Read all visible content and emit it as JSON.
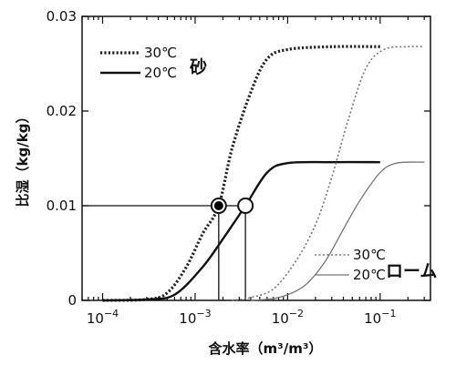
{
  "chart_data": {
    "type": "line",
    "xlabel": "含水率（m³/m³）",
    "ylabel": "比湿（kg/kg）",
    "xscale": "log",
    "xlim": [
      6e-05,
      0.35
    ],
    "ylim": [
      0,
      0.03
    ],
    "x_ticks": [
      {
        "value": 0.0001,
        "base": "10",
        "exp": "−4"
      },
      {
        "value": 0.001,
        "base": "10",
        "exp": "−3"
      },
      {
        "value": 0.01,
        "base": "10",
        "exp": "−2"
      },
      {
        "value": 0.1,
        "base": "10",
        "exp": "−1"
      }
    ],
    "y_ticks": [
      {
        "value": 0,
        "label": "0"
      },
      {
        "value": 0.01,
        "label": "0.01"
      },
      {
        "value": 0.02,
        "label": "0.02"
      },
      {
        "value": 0.03,
        "label": "0.03"
      }
    ],
    "groups": [
      {
        "label": "砂",
        "legend_position": "top-left"
      },
      {
        "label": "ローム",
        "legend_position": "bottom-right"
      }
    ],
    "series": [
      {
        "name": "30℃",
        "group": "砂",
        "style": "dotted-bold",
        "color": "#222222",
        "points": [
          [
            0.0001,
            0
          ],
          [
            0.0003,
            0.0001
          ],
          [
            0.0005,
            0.0008
          ],
          [
            0.0008,
            0.0035
          ],
          [
            0.0012,
            0.007
          ],
          [
            0.0018,
            0.01
          ],
          [
            0.0025,
            0.016
          ],
          [
            0.004,
            0.022
          ],
          [
            0.006,
            0.0255
          ],
          [
            0.01,
            0.0265
          ],
          [
            0.03,
            0.0268
          ],
          [
            0.1,
            0.0268
          ]
        ]
      },
      {
        "name": "20℃",
        "group": "砂",
        "style": "solid-bold",
        "color": "#111111",
        "points": [
          [
            0.0001,
            0
          ],
          [
            0.0003,
            0.0001
          ],
          [
            0.0006,
            0.0006
          ],
          [
            0.0012,
            0.0035
          ],
          [
            0.002,
            0.0065
          ],
          [
            0.0035,
            0.01
          ],
          [
            0.006,
            0.0135
          ],
          [
            0.01,
            0.0145
          ],
          [
            0.03,
            0.0146
          ],
          [
            0.1,
            0.0146
          ]
        ]
      },
      {
        "name": "30℃",
        "group": "ローム",
        "style": "dotted-thin",
        "color": "#777777",
        "points": [
          [
            0.0025,
            0
          ],
          [
            0.004,
            0.0003
          ],
          [
            0.007,
            0.0012
          ],
          [
            0.012,
            0.004
          ],
          [
            0.02,
            0.008
          ],
          [
            0.03,
            0.013
          ],
          [
            0.045,
            0.019
          ],
          [
            0.07,
            0.0245
          ],
          [
            0.11,
            0.0265
          ],
          [
            0.2,
            0.0268
          ],
          [
            0.3,
            0.0268
          ]
        ]
      },
      {
        "name": "20℃",
        "group": "ローム",
        "style": "solid-thin",
        "color": "#777777",
        "points": [
          [
            0.004,
            0
          ],
          [
            0.008,
            0.0003
          ],
          [
            0.015,
            0.0015
          ],
          [
            0.025,
            0.004
          ],
          [
            0.04,
            0.0075
          ],
          [
            0.06,
            0.0105
          ],
          [
            0.1,
            0.0135
          ],
          [
            0.15,
            0.0145
          ],
          [
            0.3,
            0.0146
          ]
        ]
      }
    ],
    "reference_line": {
      "y": 0.01,
      "from_x": 6e-05,
      "to_x": 0.0035
    },
    "markers": [
      {
        "x": 0.0018,
        "y": 0.01,
        "fill": "#000000",
        "drop_to_axis": true
      },
      {
        "x": 0.0035,
        "y": 0.01,
        "fill": "#ffffff",
        "drop_to_axis": true
      }
    ],
    "grid": false
  }
}
